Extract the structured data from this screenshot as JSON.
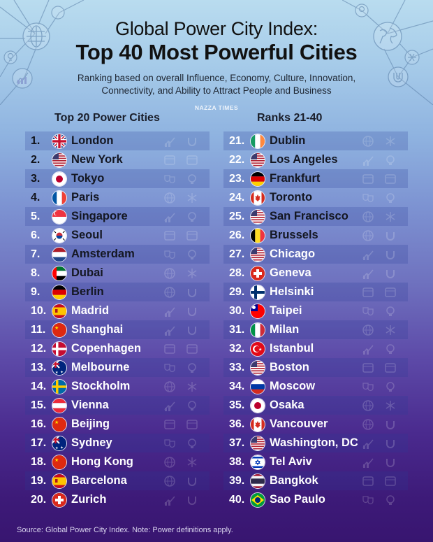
{
  "header": {
    "title_line1": "Global Power City Index:",
    "title_line2": "Top 40 Most Powerful Cities",
    "subtitle_line1": "Ranking based on overall Influence, Economy, Culture, Innovation,",
    "subtitle_line2": "Connectivity, and Ability to Attract People and Business",
    "brand": "NAZZA TIMES"
  },
  "decor_icons": {
    "left": [
      "globe-icon",
      "lightbulb-icon",
      "growth-chart-icon",
      "gear-icon"
    ],
    "right": [
      "earth-icon",
      "lightbulb-icon",
      "snowflake-network-icon",
      "magnet-icon"
    ]
  },
  "columns": [
    {
      "heading": "Top 20 Power Cities",
      "rows": [
        {
          "rank": "1.",
          "city": "London",
          "flag": "uk"
        },
        {
          "rank": "2.",
          "city": "New York",
          "flag": "us"
        },
        {
          "rank": "3.",
          "city": "Tokyo",
          "flag": "jp"
        },
        {
          "rank": "4.",
          "city": "Paris",
          "flag": "fr"
        },
        {
          "rank": "5.",
          "city": "Singapore",
          "flag": "sg"
        },
        {
          "rank": "6.",
          "city": "Seoul",
          "flag": "kr"
        },
        {
          "rank": "7.",
          "city": "Amsterdam",
          "flag": "nl"
        },
        {
          "rank": "8.",
          "city": "Dubai",
          "flag": "ae"
        },
        {
          "rank": "9.",
          "city": "Berlin",
          "flag": "de"
        },
        {
          "rank": "10.",
          "city": "Madrid",
          "flag": "es"
        },
        {
          "rank": "11.",
          "city": "Shanghai",
          "flag": "cn"
        },
        {
          "rank": "12.",
          "city": "Copenhagen",
          "flag": "dk"
        },
        {
          "rank": "13.",
          "city": "Melbourne",
          "flag": "au"
        },
        {
          "rank": "14.",
          "city": "Stockholm",
          "flag": "se"
        },
        {
          "rank": "15.",
          "city": "Vienna",
          "flag": "at"
        },
        {
          "rank": "16.",
          "city": "Beijing",
          "flag": "cn"
        },
        {
          "rank": "17.",
          "city": "Sydney",
          "flag": "au"
        },
        {
          "rank": "18.",
          "city": "Hong Kong",
          "flag": "cn"
        },
        {
          "rank": "19.",
          "city": "Barcelona",
          "flag": "es"
        },
        {
          "rank": "20.",
          "city": "Zurich",
          "flag": "ch"
        }
      ]
    },
    {
      "heading": "Ranks 21-40",
      "rows": [
        {
          "rank": "21.",
          "city": "Dublin",
          "flag": "ie"
        },
        {
          "rank": "22.",
          "city": "Los Angeles",
          "flag": "us"
        },
        {
          "rank": "23.",
          "city": "Frankfurt",
          "flag": "de"
        },
        {
          "rank": "24.",
          "city": "Toronto",
          "flag": "ca"
        },
        {
          "rank": "25.",
          "city": "San Francisco",
          "flag": "us"
        },
        {
          "rank": "26.",
          "city": "Brussels",
          "flag": "be"
        },
        {
          "rank": "27.",
          "city": "Chicago",
          "flag": "us"
        },
        {
          "rank": "28.",
          "city": "Geneva",
          "flag": "ch"
        },
        {
          "rank": "29.",
          "city": "Helsinki",
          "flag": "fi"
        },
        {
          "rank": "30.",
          "city": "Taipei",
          "flag": "tw"
        },
        {
          "rank": "31.",
          "city": "Milan",
          "flag": "it"
        },
        {
          "rank": "32.",
          "city": "Istanbul",
          "flag": "tr"
        },
        {
          "rank": "33.",
          "city": "Boston",
          "flag": "us"
        },
        {
          "rank": "34.",
          "city": "Moscow",
          "flag": "ru"
        },
        {
          "rank": "35.",
          "city": "Osaka",
          "flag": "jp"
        },
        {
          "rank": "36.",
          "city": "Vancouver",
          "flag": "ca"
        },
        {
          "rank": "37.",
          "city": "Washington, DC",
          "flag": "us"
        },
        {
          "rank": "38.",
          "city": "Tel Aviv",
          "flag": "il"
        },
        {
          "rank": "39.",
          "city": "Bangkok",
          "flag": "th"
        },
        {
          "rank": "40.",
          "city": "Sao Paulo",
          "flag": "br"
        }
      ]
    }
  ],
  "footer": {
    "source": "Source: Global Power City Index. Note: Power definitions apply."
  }
}
